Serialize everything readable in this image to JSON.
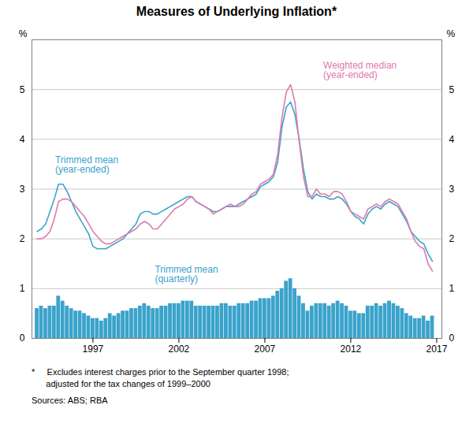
{
  "chart_data": {
    "type": "bar",
    "title": "Measures of Underlying Inflation*",
    "x": [
      1993.75,
      1994.0,
      1994.25,
      1994.5,
      1994.75,
      1995.0,
      1995.25,
      1995.5,
      1995.75,
      1996.0,
      1996.25,
      1996.5,
      1996.75,
      1997.0,
      1997.25,
      1997.5,
      1997.75,
      1998.0,
      1998.25,
      1998.5,
      1998.75,
      1999.0,
      1999.25,
      1999.5,
      1999.75,
      2000.0,
      2000.25,
      2000.5,
      2000.75,
      2001.0,
      2001.25,
      2001.5,
      2001.75,
      2002.0,
      2002.25,
      2002.5,
      2002.75,
      2003.0,
      2003.25,
      2003.5,
      2003.75,
      2004.0,
      2004.25,
      2004.5,
      2004.75,
      2005.0,
      2005.25,
      2005.5,
      2005.75,
      2006.0,
      2006.25,
      2006.5,
      2006.75,
      2007.0,
      2007.25,
      2007.5,
      2007.75,
      2008.0,
      2008.25,
      2008.5,
      2008.75,
      2009.0,
      2009.25,
      2009.5,
      2009.75,
      2010.0,
      2010.25,
      2010.5,
      2010.75,
      2011.0,
      2011.25,
      2011.5,
      2011.75,
      2012.0,
      2012.25,
      2012.5,
      2012.75,
      2013.0,
      2013.25,
      2013.5,
      2013.75,
      2014.0,
      2014.25,
      2014.5,
      2014.75,
      2015.0,
      2015.25,
      2015.5,
      2015.75,
      2016.0,
      2016.25,
      2016.5,
      2016.75
    ],
    "series": [
      {
        "type": "bar",
        "color": "#3BA3CB",
        "values": [
          0.6,
          0.65,
          0.6,
          0.65,
          0.65,
          0.85,
          0.75,
          0.65,
          0.6,
          0.55,
          0.55,
          0.5,
          0.45,
          0.4,
          0.4,
          0.35,
          0.4,
          0.5,
          0.45,
          0.5,
          0.55,
          0.55,
          0.6,
          0.6,
          0.65,
          0.7,
          0.65,
          0.6,
          0.6,
          0.65,
          0.65,
          0.7,
          0.7,
          0.7,
          0.75,
          0.75,
          0.75,
          0.65,
          0.65,
          0.65,
          0.65,
          0.65,
          0.65,
          0.7,
          0.7,
          0.65,
          0.65,
          0.7,
          0.7,
          0.7,
          0.75,
          0.75,
          0.8,
          0.8,
          0.8,
          0.85,
          0.95,
          1.0,
          1.15,
          1.2,
          1.0,
          0.85,
          0.7,
          0.55,
          0.65,
          0.7,
          0.7,
          0.7,
          0.65,
          0.7,
          0.75,
          0.7,
          0.65,
          0.55,
          0.55,
          0.5,
          0.5,
          0.65,
          0.65,
          0.7,
          0.65,
          0.7,
          0.75,
          0.7,
          0.65,
          0.6,
          0.5,
          0.45,
          0.4,
          0.4,
          0.45,
          0.35,
          0.45
        ]
      },
      {
        "type": "line",
        "color": "#3BA3CB",
        "values": [
          2.15,
          2.2,
          2.3,
          2.55,
          2.8,
          3.1,
          3.1,
          2.95,
          2.75,
          2.55,
          2.4,
          2.25,
          2.1,
          1.85,
          1.8,
          1.8,
          1.8,
          1.85,
          1.9,
          1.95,
          2.0,
          2.1,
          2.2,
          2.3,
          2.5,
          2.55,
          2.55,
          2.5,
          2.5,
          2.55,
          2.6,
          2.65,
          2.7,
          2.75,
          2.8,
          2.85,
          2.85,
          2.75,
          2.7,
          2.65,
          2.6,
          2.55,
          2.55,
          2.6,
          2.65,
          2.65,
          2.65,
          2.7,
          2.75,
          2.8,
          2.85,
          2.9,
          3.05,
          3.1,
          3.15,
          3.25,
          3.55,
          4.25,
          4.65,
          4.75,
          4.5,
          4.0,
          3.4,
          2.95,
          2.8,
          2.9,
          2.85,
          2.85,
          2.8,
          2.8,
          2.85,
          2.8,
          2.7,
          2.55,
          2.45,
          2.4,
          2.3,
          2.5,
          2.6,
          2.65,
          2.6,
          2.7,
          2.75,
          2.7,
          2.65,
          2.5,
          2.35,
          2.15,
          2.05,
          1.95,
          1.9,
          1.7,
          1.55
        ]
      },
      {
        "type": "line",
        "color": "#E07AAC",
        "values": [
          2.0,
          2.0,
          2.05,
          2.15,
          2.4,
          2.75,
          2.8,
          2.8,
          2.75,
          2.65,
          2.55,
          2.45,
          2.3,
          2.15,
          2.05,
          1.95,
          1.9,
          1.9,
          1.95,
          2.0,
          2.05,
          2.1,
          2.15,
          2.2,
          2.3,
          2.35,
          2.3,
          2.2,
          2.2,
          2.3,
          2.4,
          2.5,
          2.6,
          2.65,
          2.7,
          2.8,
          2.85,
          2.75,
          2.7,
          2.65,
          2.6,
          2.5,
          2.55,
          2.6,
          2.65,
          2.7,
          2.65,
          2.65,
          2.7,
          2.8,
          2.9,
          2.95,
          3.1,
          3.15,
          3.2,
          3.3,
          3.7,
          4.45,
          4.95,
          5.1,
          4.75,
          3.95,
          3.25,
          2.85,
          2.85,
          3.0,
          2.9,
          2.9,
          2.85,
          2.95,
          2.95,
          2.9,
          2.75,
          2.55,
          2.5,
          2.45,
          2.4,
          2.6,
          2.65,
          2.7,
          2.65,
          2.75,
          2.8,
          2.75,
          2.7,
          2.55,
          2.4,
          2.15,
          1.95,
          1.85,
          1.8,
          1.5,
          1.35
        ]
      }
    ],
    "xlim": [
      1993.45,
      2017.3
    ],
    "xticks": [
      1997,
      2002,
      2007,
      2012,
      2017
    ],
    "ylim": [
      0,
      6
    ],
    "yticks": [
      0,
      1,
      2,
      3,
      4,
      5
    ],
    "ylabel": "%",
    "grid": true,
    "annotations": [
      {
        "text": "Trimmed mean\n(year-ended)",
        "x": 1994.8,
        "y": 3.65,
        "color": "#3BA3CB"
      },
      {
        "text": "Weighted median\n(year-ended)",
        "x": 2010.4,
        "y": 5.55,
        "color": "#E07AAC"
      },
      {
        "text": "Trimmed mean\n(quarterly)",
        "x": 2000.6,
        "y": 1.45,
        "color": "#3BA3CB"
      }
    ],
    "notes": [
      "*     Excludes interest charges prior to the September quarter 1998;",
      "      adjusted for the tax changes of 1999–2000"
    ],
    "source": "Sources: ABS; RBA"
  }
}
